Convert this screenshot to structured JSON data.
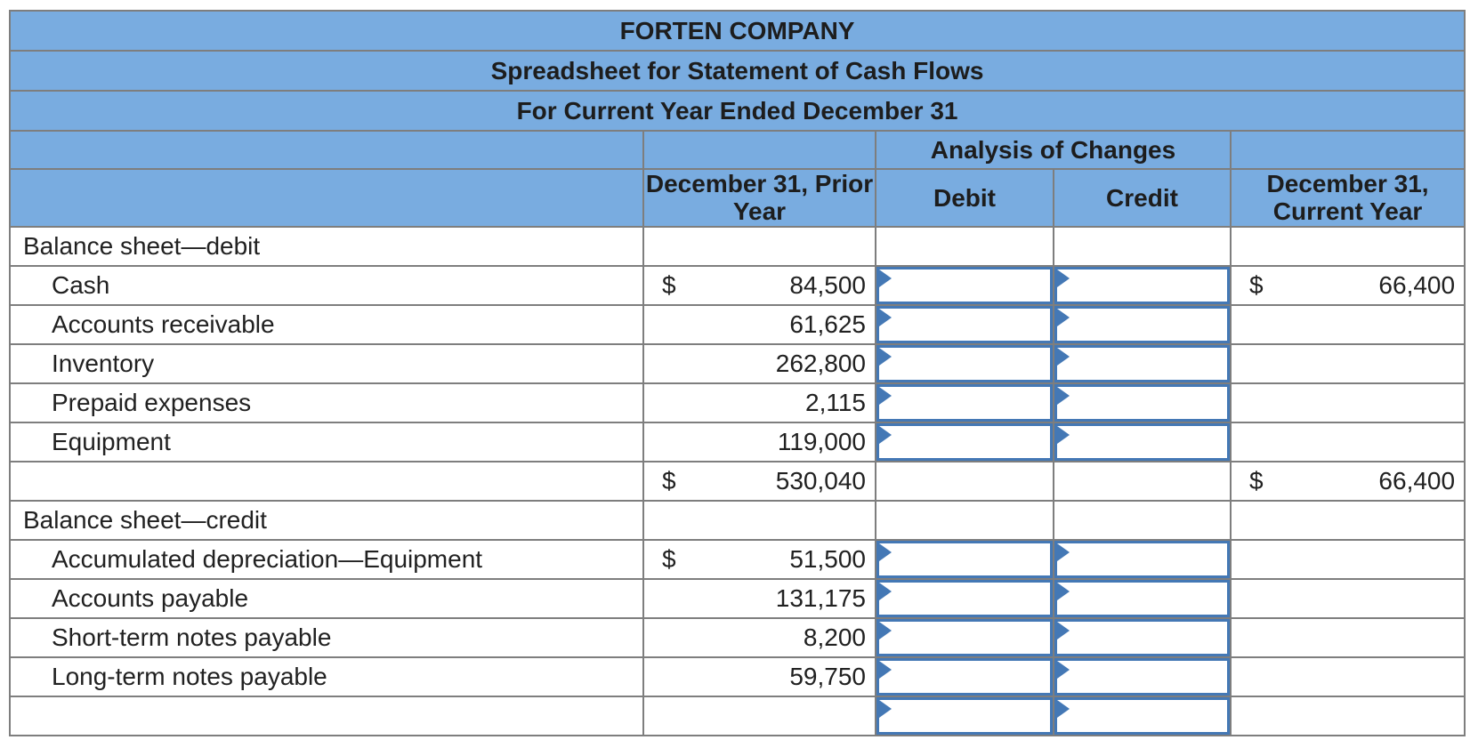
{
  "header": {
    "company": "FORTEN COMPANY",
    "subtitle": "Spreadsheet for Statement of Cash Flows",
    "period": "For Current Year Ended December 31",
    "analysis_label": "Analysis of Changes",
    "col_prior": "December 31, Prior Year",
    "col_debit": "Debit",
    "col_credit": "Credit",
    "col_current": "December 31, Current Year"
  },
  "colors": {
    "header_blue": "#79ace0",
    "grid_gray": "#7e7e7e",
    "input_border_blue": "#4478b5",
    "total_rule_black": "#000000"
  },
  "rows": [
    {
      "type": "section",
      "label": "Balance sheet—debit"
    },
    {
      "type": "item",
      "label": "Cash",
      "prior_dollar": "$",
      "prior": "84,500",
      "debit_input": true,
      "credit_input": true,
      "current_dollar": "$",
      "current": "66,400"
    },
    {
      "type": "item",
      "label": "Accounts receivable",
      "prior": "61,625",
      "debit_input": true,
      "credit_input": true
    },
    {
      "type": "item",
      "label": "Inventory",
      "prior": "262,800",
      "debit_input": true,
      "credit_input": true
    },
    {
      "type": "item",
      "label": "Prepaid expenses",
      "prior": "2,115",
      "debit_input": true,
      "credit_input": true
    },
    {
      "type": "item",
      "label": "Equipment",
      "prior": "119,000",
      "debit_input": true,
      "credit_input": true
    },
    {
      "type": "total",
      "label": "",
      "prior_dollar": "$",
      "prior": "530,040",
      "current_dollar": "$",
      "current": "66,400"
    },
    {
      "type": "section",
      "label": "Balance sheet—credit"
    },
    {
      "type": "item",
      "label": "Accumulated depreciation—Equipment",
      "prior_dollar": "$",
      "prior": "51,500",
      "debit_input": true,
      "credit_input": true
    },
    {
      "type": "item",
      "label": "Accounts payable",
      "prior": "131,175",
      "debit_input": true,
      "credit_input": true
    },
    {
      "type": "item",
      "label": "Short-term notes payable",
      "prior": "8,200",
      "debit_input": true,
      "credit_input": true
    },
    {
      "type": "item",
      "label": "Long-term notes payable",
      "prior": "59,750",
      "debit_input": true,
      "credit_input": true
    },
    {
      "type": "partial",
      "label": "",
      "debit_input": true,
      "credit_input": true
    }
  ]
}
